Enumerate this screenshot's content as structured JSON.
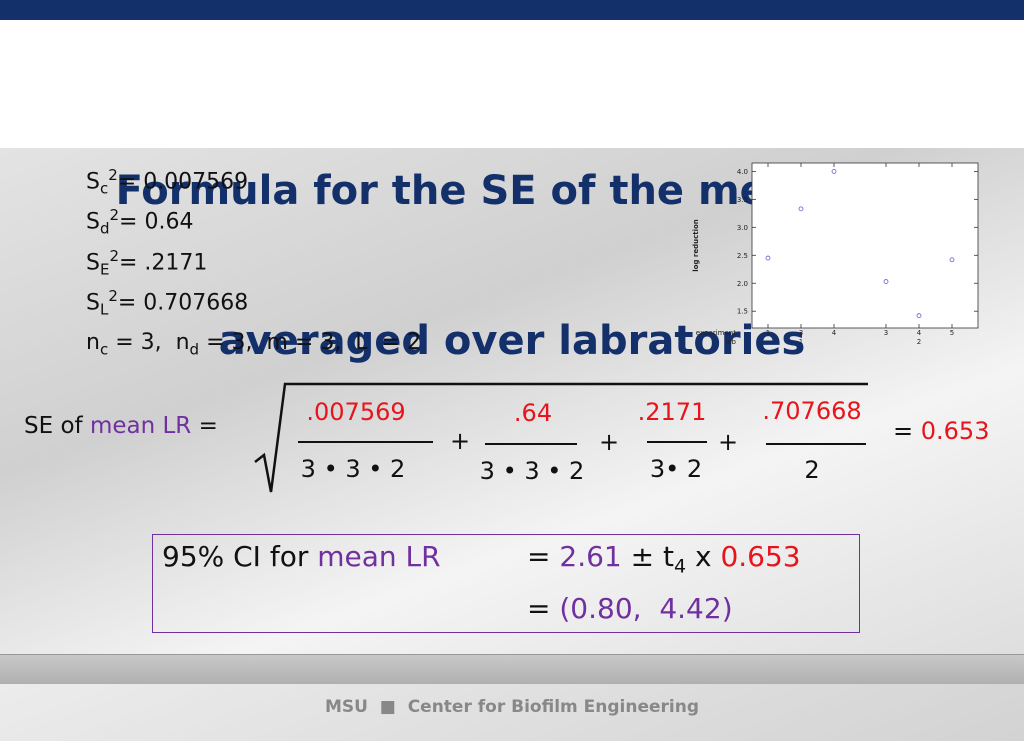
{
  "title": [
    "Formula for the SE of the mean LR,",
    "averaged over labratories"
  ],
  "variances": [
    {
      "symbol": "S",
      "sub": "c",
      "sup": "2",
      "value": "= 0.007569"
    },
    {
      "symbol": "S",
      "sub": "d",
      "sup": "2",
      "value": "= 0.64"
    },
    {
      "symbol": "S",
      "sub": "E",
      "sup": "2",
      "value": "= .2171"
    },
    {
      "symbol": "S",
      "sub": "L",
      "sup": "2",
      "value": "= 0.707668"
    }
  ],
  "counts": [
    "n",
    "c",
    " = 3,  n",
    "d",
    " = 3,  m = 3,  L  = 2"
  ],
  "formula": {
    "label": "SE of",
    "label_highlight": "mean LR",
    "equals": "=",
    "numerators": [
      ".007569",
      ".64",
      ".2171",
      ".707668"
    ],
    "denominators": [
      "3 • 3 • 2",
      "3 • 3 • 2",
      "3• 2",
      "2"
    ],
    "plus": [
      "+",
      "+",
      "+"
    ],
    "result_equals": "=",
    "result": "0.653"
  },
  "ci": {
    "label": "95% CI for",
    "label_highlight": "mean LR",
    "equals": "=",
    "estimate": "2.61",
    "pm": "± t",
    "df": "4",
    "times": " x ",
    "se": "0.653",
    "equals2": "=",
    "interval": "(0.80,  4.42)"
  },
  "footer": [
    "MSU",
    "Center for Biofilm Engineering"
  ],
  "chart_data": {
    "type": "scatter",
    "y_label": "log reduction",
    "x_row_labels": [
      "experiment",
      "lab"
    ],
    "categories": [
      "1",
      "3",
      "4",
      "3",
      "4",
      "5"
    ],
    "lab": [
      null,
      "1",
      null,
      null,
      "2",
      null
    ],
    "values": [
      2.45,
      3.33,
      4.0,
      2.03,
      1.42,
      2.42
    ],
    "color": "#7b4fd0",
    "ylim": [
      1.2,
      4.15
    ],
    "yticks": [
      {
        "value": 1.5,
        "label": "1.5"
      },
      {
        "value": 2,
        "label": "2.0"
      },
      {
        "value": 2.5,
        "label": "2.5"
      },
      {
        "value": 3,
        "label": "3.0"
      },
      {
        "value": 3.5,
        "label": "3.5"
      },
      {
        "value": 4,
        "label": "4.0"
      }
    ]
  }
}
